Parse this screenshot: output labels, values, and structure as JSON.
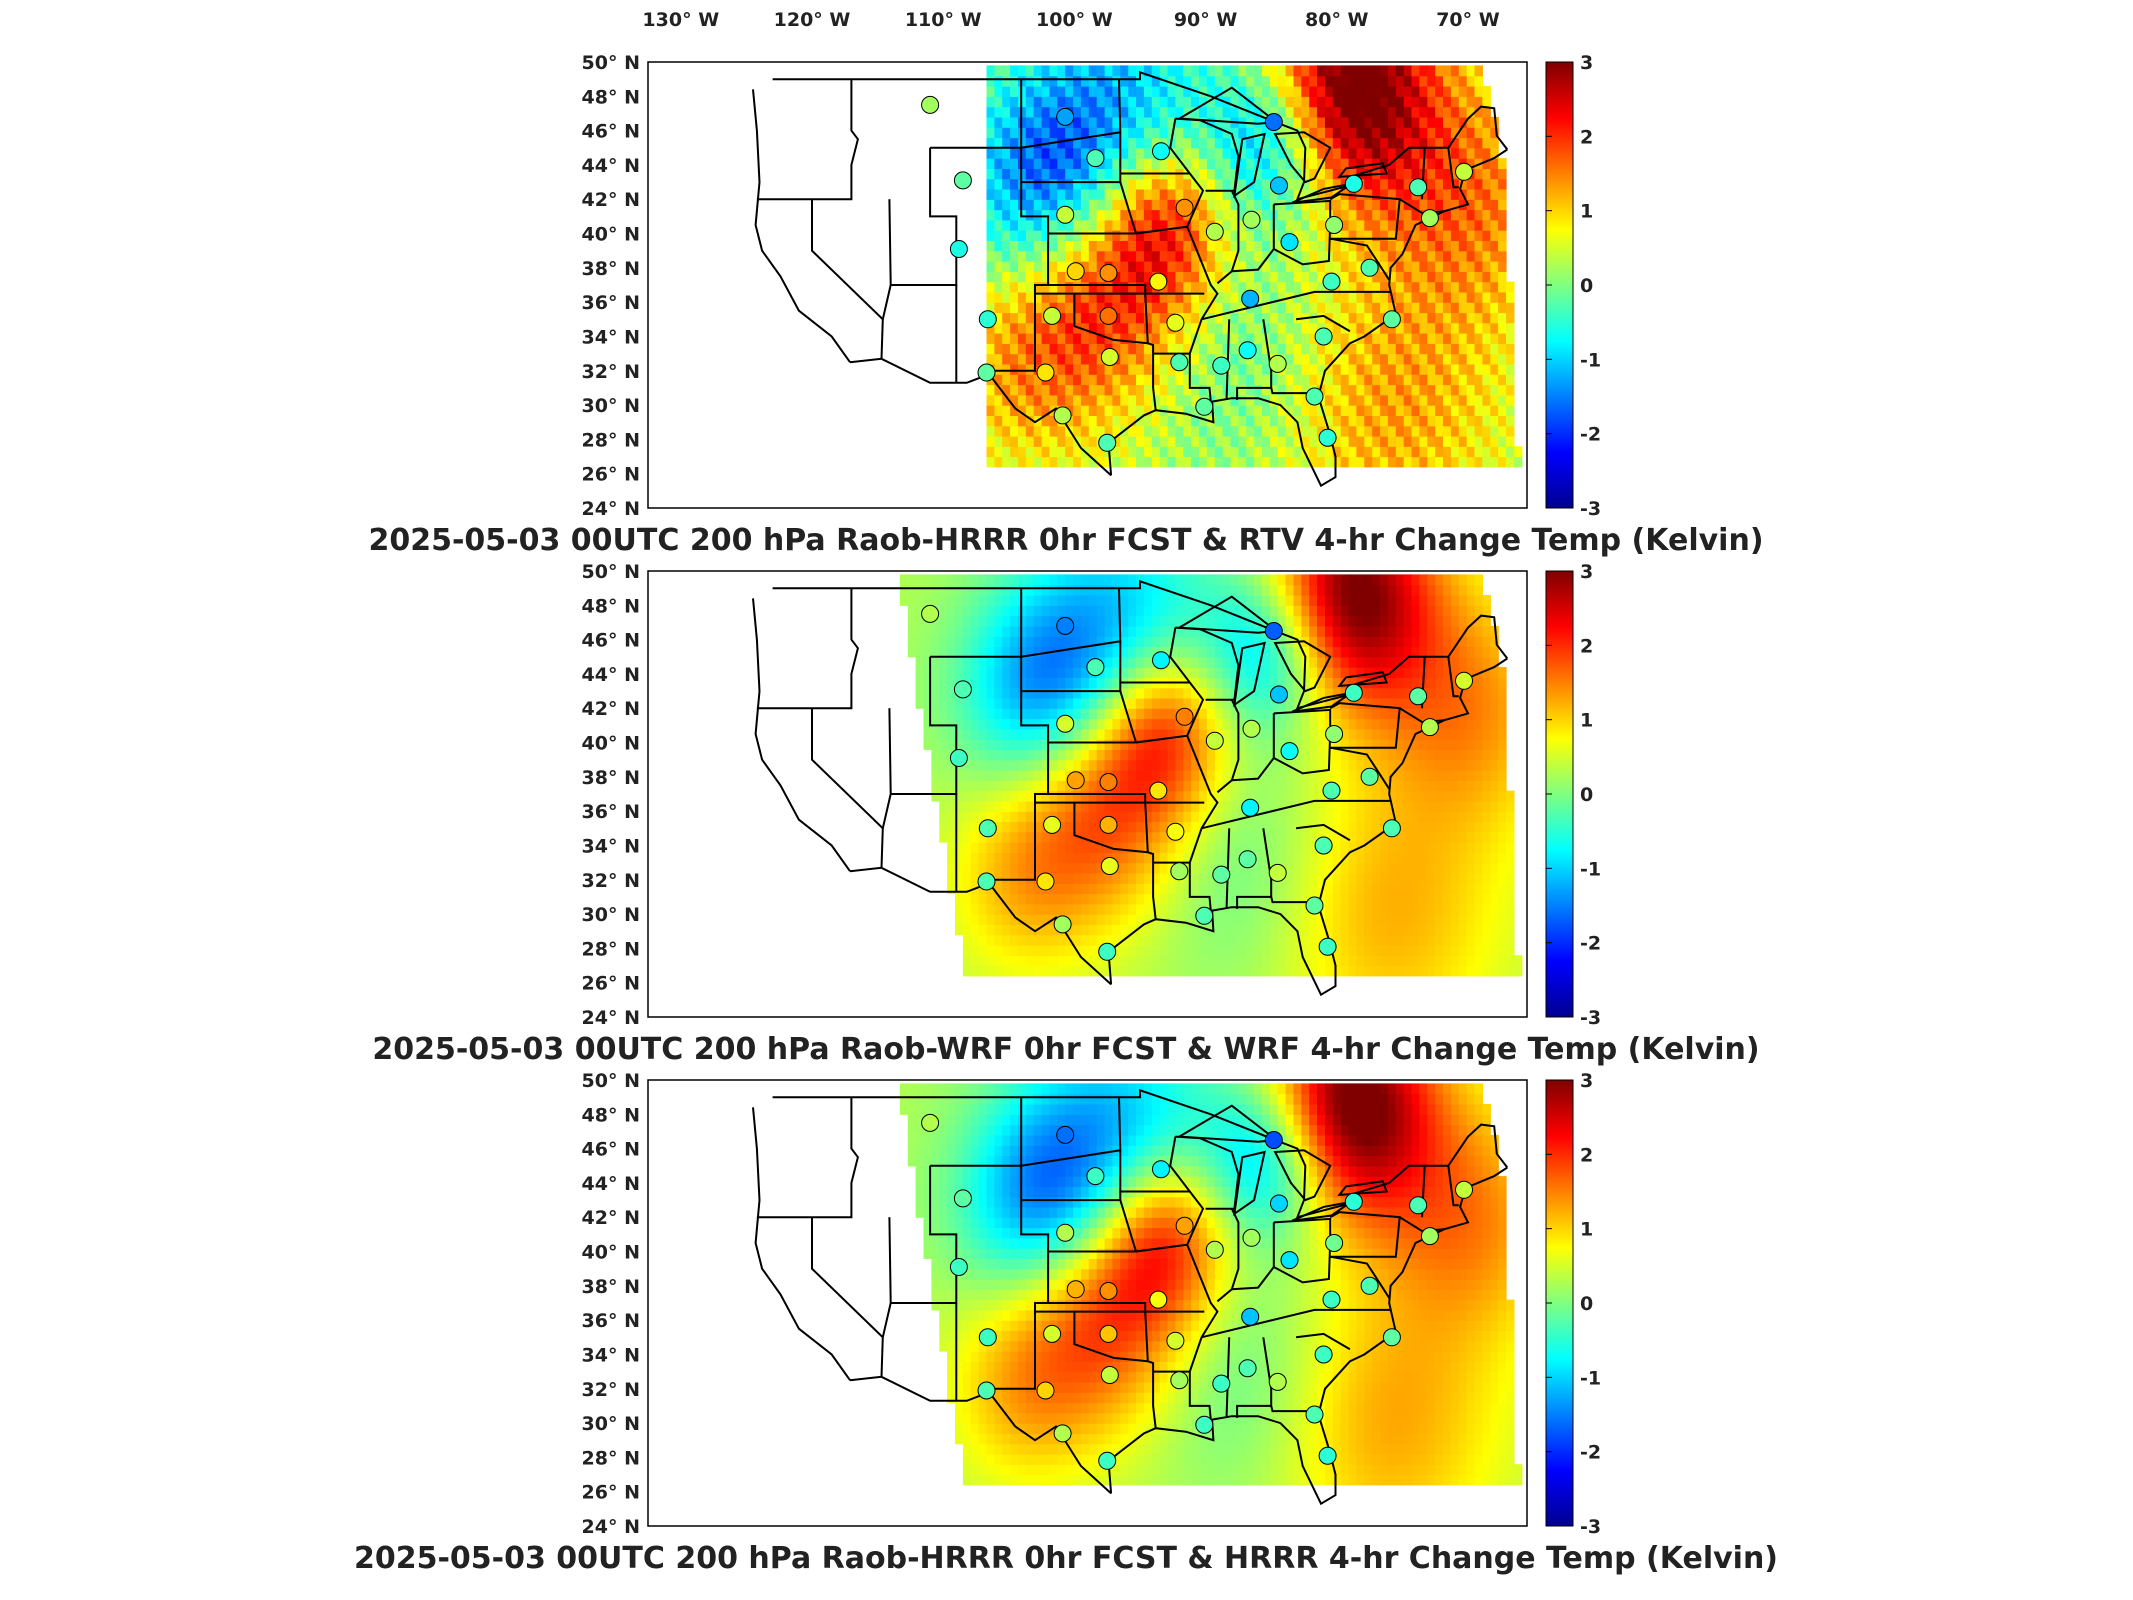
{
  "lon_labels": [
    "130° W",
    "120° W",
    "110° W",
    "100° W",
    "90° W",
    "80° W",
    "70° W"
  ],
  "lat_labels": [
    "50° N",
    "48° N",
    "46° N",
    "44° N",
    "42° N",
    "40° N",
    "38° N",
    "36° N",
    "34° N",
    "32° N",
    "30° N",
    "28° N",
    "26° N",
    "24° N"
  ],
  "colorbar_ticks": [
    "3",
    "2",
    "1",
    "0",
    "-1",
    "-2",
    "-3"
  ],
  "colorbar_range": [
    -3,
    3
  ],
  "colorbar_colormap": [
    "#00008f",
    "#0000ff",
    "#0080ff",
    "#00ffff",
    "#80ff80",
    "#ffff00",
    "#ff8000",
    "#ff0000",
    "#800000"
  ],
  "panels": [
    {
      "title": "2025-05-03 00UTC 200 hPa Raob-HRRR 0hr FCST & RTV 4-hr Change Temp (Kelvin)",
      "model": "HRRR-RTV"
    },
    {
      "title": "2025-05-03 00UTC 200 hPa Raob-WRF 0hr FCST & WRF 4-hr Change Temp (Kelvin)",
      "model": "WRF"
    },
    {
      "title": "2025-05-03 00UTC 200 hPa Raob-HRRR 0hr FCST & HRRR 4-hr Change Temp (Kelvin)",
      "model": "HRRR"
    }
  ],
  "raob_stations": [
    {
      "lon": -111.0,
      "lat": 47.5,
      "values": [
        0.2,
        0.3,
        0.3
      ]
    },
    {
      "lon": -108.5,
      "lat": 43.1,
      "values": [
        -0.2,
        -0.3,
        -0.2
      ]
    },
    {
      "lon": -108.8,
      "lat": 39.1,
      "values": [
        -0.6,
        -0.4,
        -0.4
      ]
    },
    {
      "lon": -106.6,
      "lat": 35.0,
      "values": [
        -0.5,
        -0.3,
        -0.4
      ]
    },
    {
      "lon": -106.7,
      "lat": 31.9,
      "values": [
        -0.2,
        -0.3,
        -0.3
      ]
    },
    {
      "lon": -100.7,
      "lat": 46.8,
      "values": [
        -1.3,
        -1.5,
        -1.6
      ]
    },
    {
      "lon": -98.4,
      "lat": 44.4,
      "values": [
        -0.3,
        -0.3,
        -0.4
      ]
    },
    {
      "lon": -100.7,
      "lat": 41.1,
      "values": [
        0.4,
        0.5,
        0.3
      ]
    },
    {
      "lon": -101.7,
      "lat": 35.2,
      "values": [
        0.4,
        0.6,
        0.5
      ]
    },
    {
      "lon": -99.9,
      "lat": 37.8,
      "values": [
        1.0,
        1.3,
        1.2
      ]
    },
    {
      "lon": -97.4,
      "lat": 37.7,
      "values": [
        1.4,
        1.5,
        1.4
      ]
    },
    {
      "lon": -97.4,
      "lat": 35.2,
      "values": [
        1.6,
        1.2,
        1.1
      ]
    },
    {
      "lon": -97.3,
      "lat": 32.8,
      "values": [
        0.5,
        0.6,
        0.4
      ]
    },
    {
      "lon": -102.2,
      "lat": 31.9,
      "values": [
        0.9,
        0.9,
        1.0
      ]
    },
    {
      "lon": -100.9,
      "lat": 29.4,
      "values": [
        0.3,
        0.2,
        0.3
      ]
    },
    {
      "lon": -97.5,
      "lat": 27.8,
      "values": [
        -0.3,
        -0.4,
        -0.4
      ]
    },
    {
      "lon": -93.4,
      "lat": 44.8,
      "values": [
        -0.7,
        -0.8,
        -0.8
      ]
    },
    {
      "lon": -91.6,
      "lat": 41.5,
      "values": [
        1.4,
        1.5,
        1.3
      ]
    },
    {
      "lon": -89.3,
      "lat": 40.1,
      "values": [
        0.3,
        0.4,
        0.3
      ]
    },
    {
      "lon": -93.6,
      "lat": 37.2,
      "values": [
        0.8,
        0.9,
        0.7
      ]
    },
    {
      "lon": -92.3,
      "lat": 34.8,
      "values": [
        0.6,
        0.7,
        0.5
      ]
    },
    {
      "lon": -92.0,
      "lat": 32.5,
      "values": [
        -0.3,
        0.2,
        0.2
      ]
    },
    {
      "lon": -90.1,
      "lat": 29.9,
      "values": [
        -0.2,
        -0.3,
        -0.4
      ]
    },
    {
      "lon": -88.8,
      "lat": 32.3,
      "values": [
        -0.4,
        -0.2,
        -0.4
      ]
    },
    {
      "lon": -86.6,
      "lat": 36.2,
      "values": [
        -1.2,
        -0.8,
        -1.1
      ]
    },
    {
      "lon": -86.5,
      "lat": 40.8,
      "values": [
        0.2,
        0.3,
        0.2
      ]
    },
    {
      "lon": -84.8,
      "lat": 46.5,
      "values": [
        -1.6,
        -1.7,
        -1.8
      ]
    },
    {
      "lon": -84.4,
      "lat": 42.8,
      "values": [
        -1.1,
        -1.1,
        -1.0
      ]
    },
    {
      "lon": -83.6,
      "lat": 39.5,
      "values": [
        -0.9,
        -0.7,
        -0.9
      ]
    },
    {
      "lon": -86.8,
      "lat": 33.2,
      "values": [
        -0.7,
        -0.2,
        -0.3
      ]
    },
    {
      "lon": -84.5,
      "lat": 32.4,
      "values": [
        0.3,
        0.4,
        0.3
      ]
    },
    {
      "lon": -81.7,
      "lat": 30.5,
      "values": [
        -0.3,
        -0.2,
        -0.3
      ]
    },
    {
      "lon": -80.7,
      "lat": 28.1,
      "values": [
        -0.5,
        -0.4,
        -0.5
      ]
    },
    {
      "lon": -81.0,
      "lat": 34.0,
      "values": [
        -0.3,
        -0.3,
        -0.4
      ]
    },
    {
      "lon": -80.4,
      "lat": 37.2,
      "values": [
        -0.4,
        -0.3,
        -0.4
      ]
    },
    {
      "lon": -80.2,
      "lat": 40.5,
      "values": [
        0.1,
        0.1,
        -0.1
      ]
    },
    {
      "lon": -77.5,
      "lat": 38.0,
      "values": [
        -0.3,
        -0.2,
        -0.3
      ]
    },
    {
      "lon": -75.8,
      "lat": 35.0,
      "values": [
        -0.2,
        -0.3,
        -0.2
      ]
    },
    {
      "lon": -78.7,
      "lat": 42.9,
      "values": [
        -0.6,
        -0.4,
        -0.5
      ]
    },
    {
      "lon": -73.8,
      "lat": 42.7,
      "values": [
        -0.3,
        -0.2,
        -0.3
      ]
    },
    {
      "lon": -72.9,
      "lat": 40.9,
      "values": [
        0.2,
        0.3,
        0.2
      ]
    },
    {
      "lon": -70.3,
      "lat": 43.6,
      "values": [
        0.4,
        0.5,
        0.4
      ]
    }
  ]
}
